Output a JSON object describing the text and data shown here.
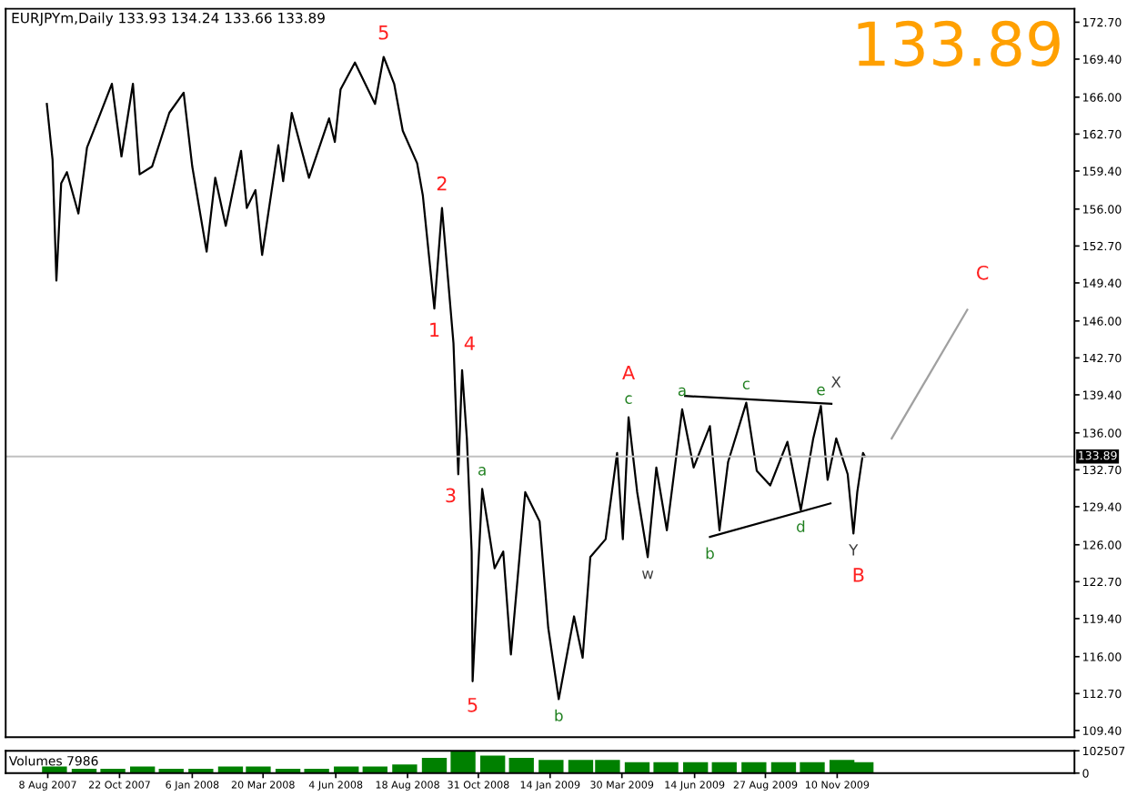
{
  "chart_data": [
    {
      "type": "line",
      "title": "EURJPYm,Daily 133.93 134.24 133.66 133.89",
      "annotations": [
        "133.89",
        {
          "text": "5",
          "x": "2008-07-24",
          "y": 169.6
        },
        {
          "text": "2",
          "x": "2008-09-23",
          "y": 156.1
        },
        {
          "text": "1",
          "x": "2008-09-15",
          "y": 147.1
        },
        {
          "text": "4",
          "x": "2008-10-14",
          "y": 141.6
        },
        {
          "text": "3",
          "x": "2008-10-10",
          "y": 132.3
        },
        {
          "text": "5",
          "x": "2008-10-25",
          "y": 113.8
        },
        {
          "text": "A",
          "x": "2009-04-06",
          "y": 137.4
        },
        {
          "text": "B",
          "x": "2009-11-27",
          "y": 127.0
        },
        {
          "text": "C",
          "x": "2010-03-26",
          "y": 147.0
        },
        {
          "text": "a",
          "x": "2008-11-04",
          "y": 131.0
        },
        {
          "text": "b",
          "x": "2009-01-23",
          "y": 112.2
        },
        {
          "text": "c",
          "x": "2009-04-06",
          "y": 137.4
        },
        {
          "text": "a",
          "x": "2009-06-01",
          "y": 138.1
        },
        {
          "text": "c",
          "x": "2009-08-07",
          "y": 138.7
        },
        {
          "text": "e",
          "x": "2009-10-24",
          "y": 138.4
        },
        {
          "text": "b",
          "x": "2009-06-30",
          "y": 126.7
        },
        {
          "text": "d",
          "x": "2009-10-03",
          "y": 129.1
        },
        {
          "text": "w",
          "x": "2009-04-26",
          "y": 124.9
        },
        {
          "text": "X",
          "x": "2009-10-24",
          "y": 138.4
        },
        {
          "text": "Y",
          "x": "2009-11-27",
          "y": 127.0
        }
      ],
      "series": [
        {
          "color": "#000000",
          "x": [
            "2007-08-07",
            "2007-08-13",
            "2007-08-17",
            "2007-08-22",
            "2007-08-28",
            "2007-09-09",
            "2007-09-18",
            "2007-09-30",
            "2007-10-14",
            "2007-10-24",
            "2007-11-05",
            "2007-11-12",
            "2007-11-25",
            "2007-12-13",
            "2007-12-28",
            "2008-01-06",
            "2008-01-21",
            "2008-01-30",
            "2008-02-10",
            "2008-02-26",
            "2008-03-03",
            "2008-03-12",
            "2008-03-19",
            "2008-04-05",
            "2008-04-10",
            "2008-04-19",
            "2008-05-07",
            "2008-05-28",
            "2008-06-03",
            "2008-06-09",
            "2008-06-24",
            "2008-07-15",
            "2008-07-24",
            "2008-08-04",
            "2008-08-13",
            "2008-08-28",
            "2008-09-03",
            "2008-09-15",
            "2008-09-23",
            "2008-10-05",
            "2008-10-10",
            "2008-10-14",
            "2008-10-19",
            "2008-10-24",
            "2008-10-25",
            "2008-11-04",
            "2008-11-17",
            "2008-11-26",
            "2008-12-04",
            "2008-12-19",
            "2009-01-03",
            "2009-01-12",
            "2009-01-23",
            "2009-02-08",
            "2009-02-17",
            "2009-02-25",
            "2009-03-13",
            "2009-03-25",
            "2009-03-31",
            "2009-04-06",
            "2009-04-15",
            "2009-04-26",
            "2009-05-05",
            "2009-05-16",
            "2009-06-01",
            "2009-06-13",
            "2009-06-30",
            "2009-07-10",
            "2009-07-19",
            "2009-08-07",
            "2009-08-18",
            "2009-09-01",
            "2009-09-19",
            "2009-10-03",
            "2009-10-16",
            "2009-10-24",
            "2009-10-31",
            "2009-11-09",
            "2009-11-21",
            "2009-11-27",
            "2009-12-01",
            "2009-12-07",
            "2009-12-09"
          ],
          "values": [
            165.4,
            160.4,
            149.6,
            158.3,
            159.3,
            155.6,
            161.5,
            164.1,
            167.2,
            160.7,
            167.2,
            159.1,
            159.8,
            164.6,
            166.4,
            159.8,
            152.2,
            158.8,
            154.5,
            161.2,
            156.1,
            157.7,
            151.9,
            161.7,
            158.5,
            164.6,
            158.8,
            164.1,
            162.0,
            166.7,
            169.1,
            165.4,
            169.6,
            167.2,
            163.0,
            160.1,
            157.2,
            147.1,
            156.1,
            144.0,
            132.3,
            141.6,
            135.5,
            125.4,
            113.8,
            131.0,
            123.9,
            125.4,
            116.2,
            130.7,
            128.1,
            118.6,
            112.2,
            119.6,
            115.9,
            124.9,
            126.5,
            134.2,
            126.5,
            137.4,
            130.7,
            124.9,
            132.9,
            127.3,
            138.1,
            132.9,
            136.6,
            127.3,
            133.4,
            138.7,
            132.6,
            131.3,
            135.2,
            129.1,
            135.5,
            138.4,
            131.8,
            135.5,
            132.3,
            127.0,
            130.7,
            134.2,
            133.89
          ]
        },
        {
          "color": "#000000",
          "x": [
            "2009-06-04",
            "2009-11-04"
          ],
          "values": [
            139.3,
            138.6
          ]
        },
        {
          "color": "#000000",
          "x": [
            "2009-06-30",
            "2009-11-03"
          ],
          "values": [
            126.7,
            129.7
          ]
        },
        {
          "color": "#a0a0a0",
          "x": [
            "2010-01-06",
            "2010-03-26"
          ],
          "values": [
            135.5,
            147.0
          ]
        }
      ],
      "ref_lines": [
        {
          "axis": "y",
          "value": 133.89,
          "label": "133.89",
          "color": "#c0c0c0"
        }
      ],
      "xlim": [
        "2007-06-25",
        "2010-07-16"
      ],
      "ylim": [
        108.8,
        173.9
      ],
      "yticks": [
        {
          "value": 172.7,
          "label": "172.70"
        },
        {
          "value": 169.4,
          "label": "169.40"
        },
        {
          "value": 166.0,
          "label": "166.00"
        },
        {
          "value": 162.7,
          "label": "162.70"
        },
        {
          "value": 159.4,
          "label": "159.40"
        },
        {
          "value": 156.0,
          "label": "156.00"
        },
        {
          "value": 152.7,
          "label": "152.70"
        },
        {
          "value": 149.4,
          "label": "149.40"
        },
        {
          "value": 146.0,
          "label": "146.00"
        },
        {
          "value": 142.7,
          "label": "142.70"
        },
        {
          "value": 139.4,
          "label": "139.40"
        },
        {
          "value": 136.0,
          "label": "136.00"
        },
        {
          "value": 132.7,
          "label": "132.70"
        },
        {
          "value": 129.4,
          "label": "129.40"
        },
        {
          "value": 126.0,
          "label": "126.00"
        },
        {
          "value": 122.7,
          "label": "122.70"
        },
        {
          "value": 119.4,
          "label": "119.40"
        },
        {
          "value": 116.0,
          "label": "116.00"
        },
        {
          "value": 112.7,
          "label": "112.70"
        },
        {
          "value": 109.4,
          "label": "109.40"
        }
      ],
      "tick_labels": "y",
      "grid": false,
      "legend": false
    },
    {
      "type": "bar",
      "annotations": [
        "Volumes 7986"
      ],
      "x": [
        "2007-08-15",
        "2007-09-15",
        "2007-10-15",
        "2007-11-15",
        "2007-12-15",
        "2008-01-15",
        "2008-02-15",
        "2008-03-15",
        "2008-04-15",
        "2008-05-15",
        "2008-06-15",
        "2008-07-15",
        "2008-08-15",
        "2008-09-15",
        "2008-10-15",
        "2008-11-15",
        "2008-12-15",
        "2009-01-15",
        "2009-02-15",
        "2009-03-15",
        "2009-04-15",
        "2009-05-15",
        "2009-06-15",
        "2009-07-15",
        "2009-08-15",
        "2009-09-15",
        "2009-10-15",
        "2009-11-15",
        "2009-12-05"
      ],
      "values": [
        30000,
        20000,
        20000,
        30000,
        20000,
        20000,
        30000,
        30000,
        20000,
        20000,
        30000,
        30000,
        40000,
        70000,
        100000,
        80000,
        70000,
        60000,
        60000,
        60000,
        50000,
        50000,
        50000,
        50000,
        50000,
        50000,
        50000,
        60000,
        50000
      ],
      "color": "#008000",
      "xlim": [
        "2007-06-25",
        "2010-07-16"
      ],
      "xticks": [
        {
          "value": "2007-08-08",
          "label": "8 Aug 2007"
        },
        {
          "value": "2007-10-22",
          "label": "22 Oct 2007"
        },
        {
          "value": "2008-01-06",
          "label": "6 Jan 2008"
        },
        {
          "value": "2008-03-20",
          "label": "20 Mar 2008"
        },
        {
          "value": "2008-06-04",
          "label": "4 Jun 2008"
        },
        {
          "value": "2008-08-18",
          "label": "18 Aug 2008"
        },
        {
          "value": "2008-10-31",
          "label": "31 Oct 2008"
        },
        {
          "value": "2009-01-14",
          "label": "14 Jan 2009"
        },
        {
          "value": "2009-03-30",
          "label": "30 Mar 2009"
        },
        {
          "value": "2009-06-14",
          "label": "14 Jun 2009"
        },
        {
          "value": "2009-08-27",
          "label": "27 Aug 2009"
        },
        {
          "value": "2009-11-10",
          "label": "10 Nov 2009"
        }
      ],
      "ylim": [
        0,
        102507
      ],
      "yticks": [
        0,
        102507
      ],
      "grid": false,
      "legend": false
    }
  ]
}
